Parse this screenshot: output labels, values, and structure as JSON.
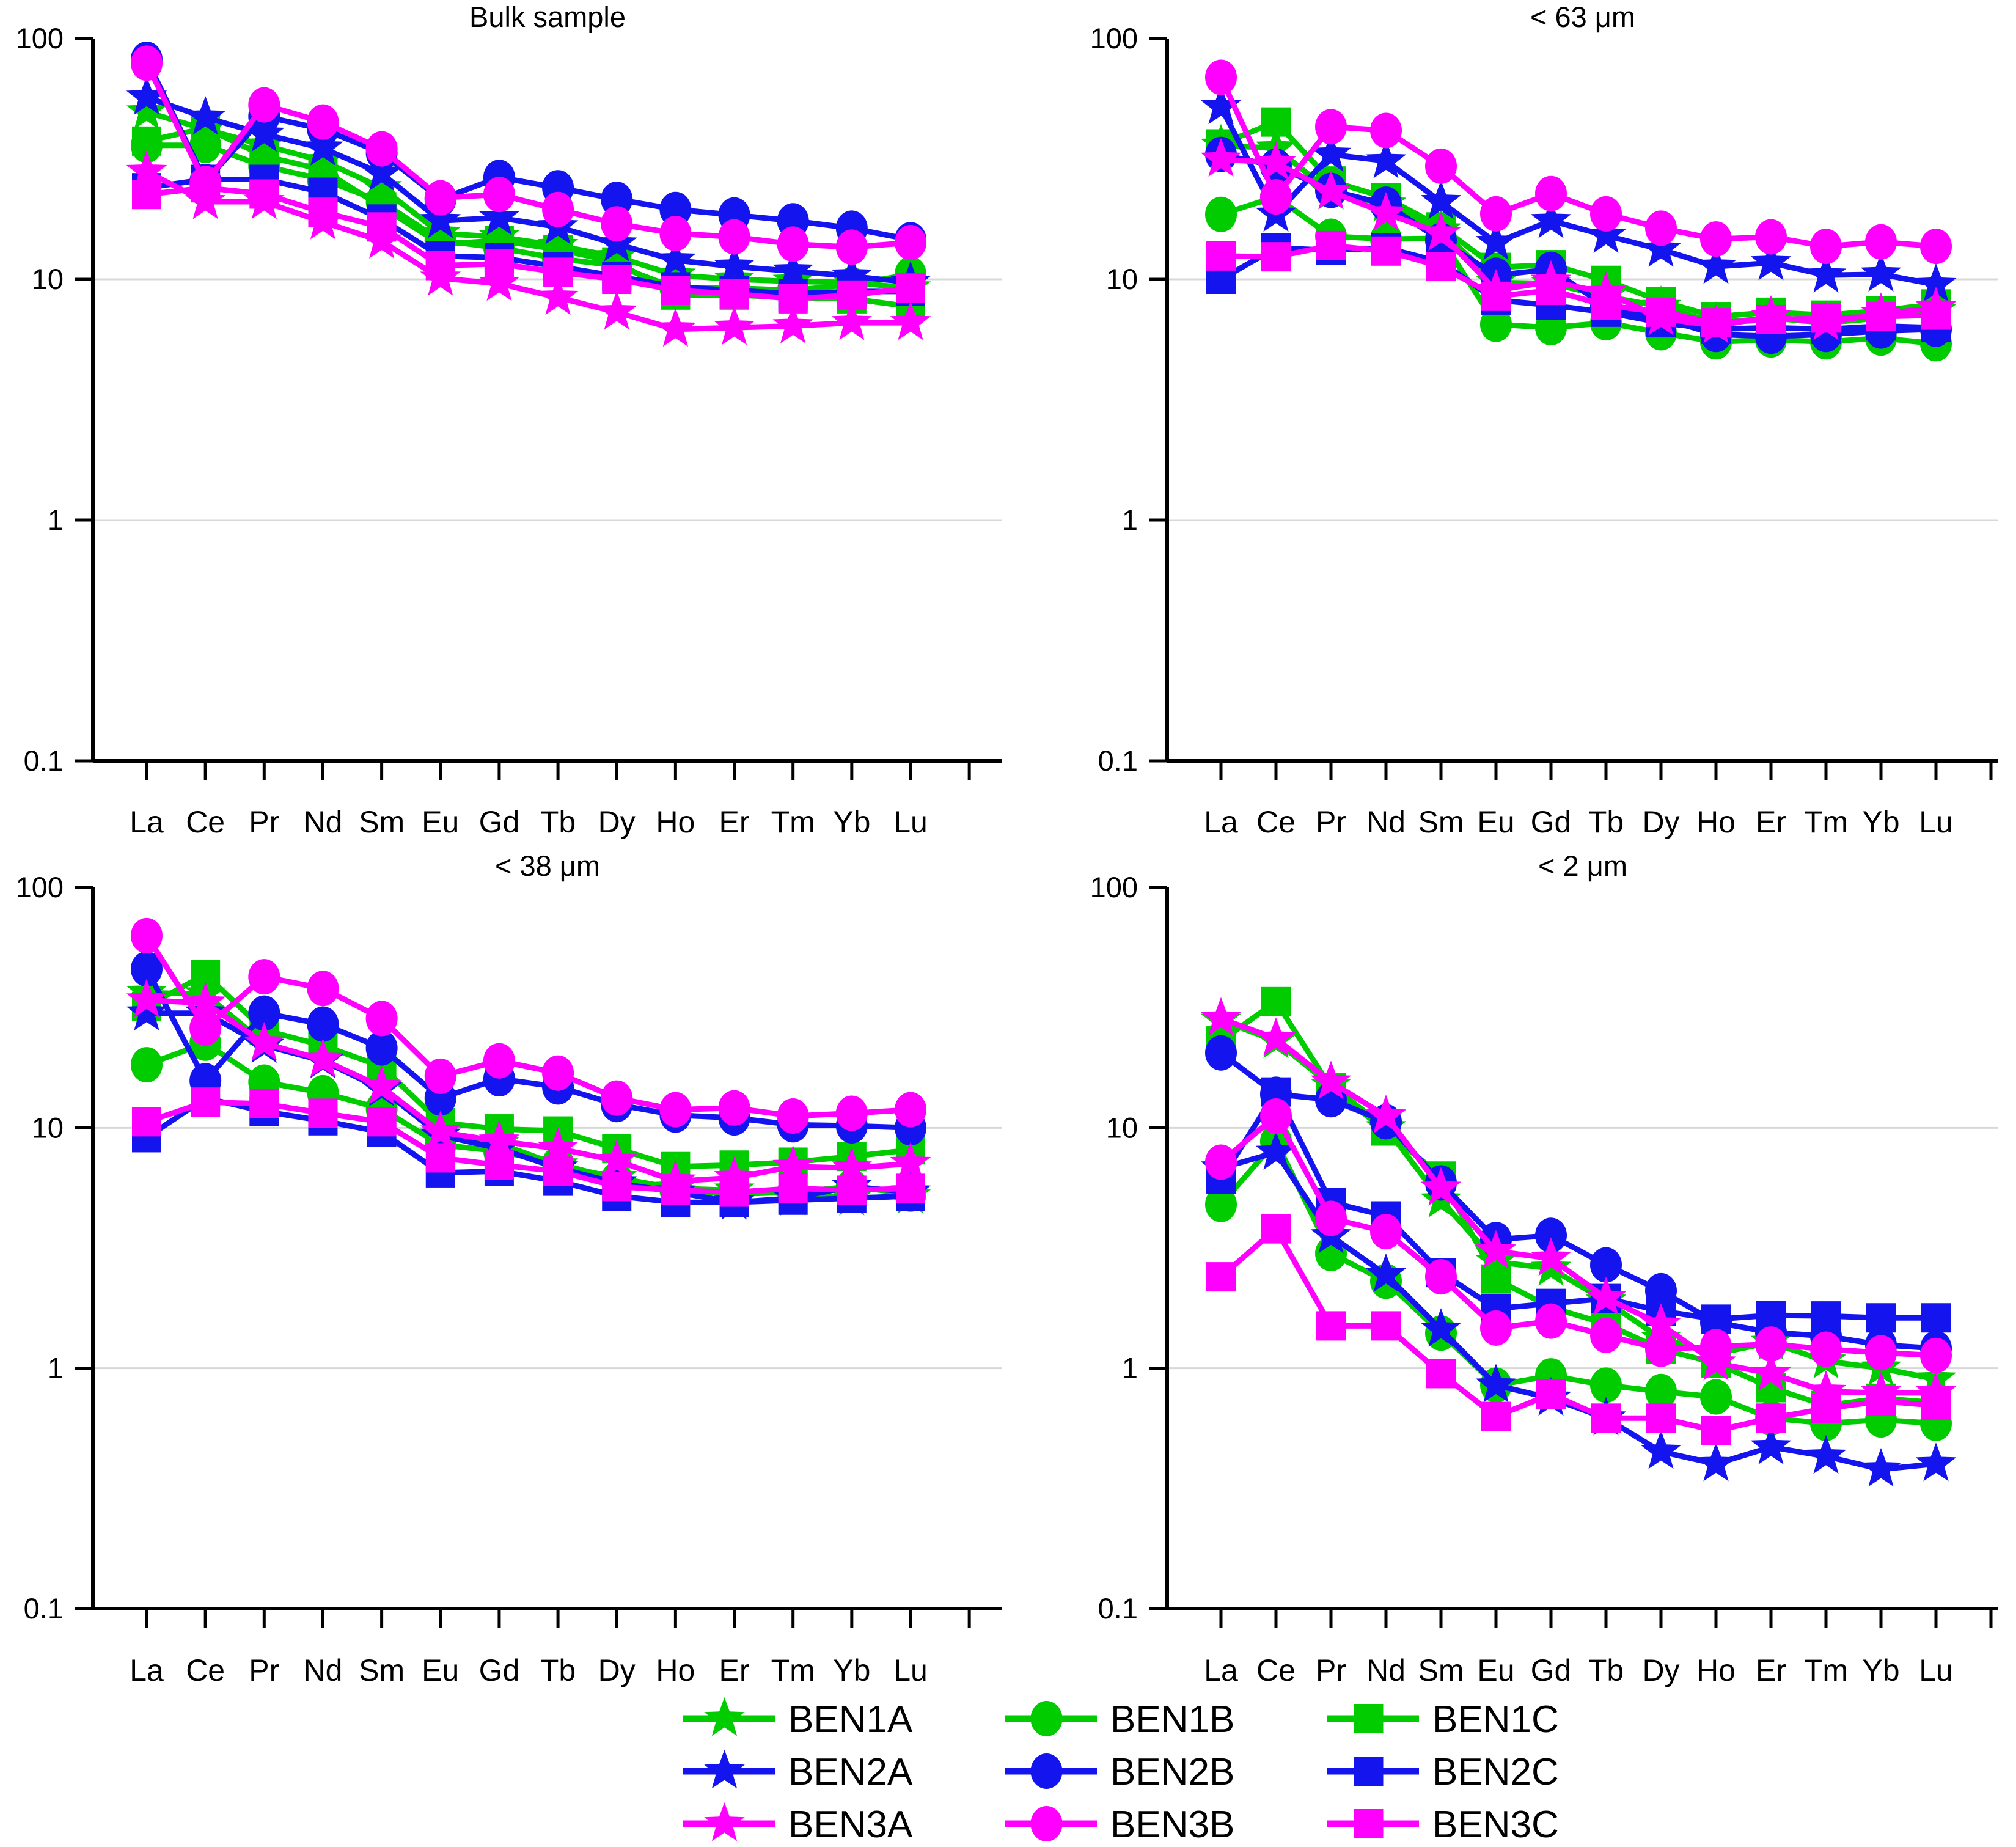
{
  "figure": {
    "background": "#ffffff",
    "kind": "ree-spider-diagrams",
    "legend_position": "bottom"
  },
  "colors": {
    "green": "#00CC00",
    "blue": "#1414EE",
    "magenta": "#FF00FF",
    "grid": "#D8D8D8",
    "axis": "#000000",
    "text": "#000000"
  },
  "categories": [
    "La",
    "Ce",
    "Pr",
    "Nd",
    "Sm",
    "Eu",
    "Gd",
    "Tb",
    "Dy",
    "Ho",
    "Er",
    "Tm",
    "Yb",
    "Lu"
  ],
  "y_axis": {
    "scale": "log",
    "ylim": [
      0.1,
      100
    ],
    "tick_values": [
      100,
      10,
      1,
      0.1
    ],
    "tick_labels": [
      "100",
      "10",
      "1",
      "0.1"
    ],
    "gridline_values": [
      10,
      1
    ]
  },
  "legend": {
    "items": [
      {
        "label": "BEN1A",
        "color": "green",
        "marker": "star",
        "row": 0,
        "col": 0
      },
      {
        "label": "BEN1B",
        "color": "green",
        "marker": "circle",
        "row": 0,
        "col": 1
      },
      {
        "label": "BEN1C",
        "color": "green",
        "marker": "square",
        "row": 0,
        "col": 2
      },
      {
        "label": "BEN2A",
        "color": "blue",
        "marker": "star",
        "row": 1,
        "col": 0
      },
      {
        "label": "BEN2B",
        "color": "blue",
        "marker": "circle",
        "row": 1,
        "col": 1
      },
      {
        "label": "BEN2C",
        "color": "blue",
        "marker": "square",
        "row": 1,
        "col": 2
      },
      {
        "label": "BEN3A",
        "color": "magenta",
        "marker": "star",
        "row": 2,
        "col": 0
      },
      {
        "label": "BEN3B",
        "color": "magenta",
        "marker": "circle",
        "row": 2,
        "col": 1
      },
      {
        "label": "BEN3C",
        "color": "magenta",
        "marker": "square",
        "row": 2,
        "col": 2
      }
    ]
  },
  "chart_data": [
    {
      "type": "line",
      "title": "Bulk sample",
      "y_scale": "log",
      "ylim": [
        0.1,
        100
      ],
      "series": [
        {
          "name": "BEN1A",
          "color": "green",
          "marker": "star",
          "values": [
            49.5,
            42,
            36,
            31,
            24,
            15.5,
            15,
            13.8,
            12.4,
            10.4,
            10.0,
            9.8,
            9.7,
            9.2
          ]
        },
        {
          "name": "BEN1B",
          "color": "green",
          "marker": "circle",
          "values": [
            36,
            36,
            29.5,
            26,
            21,
            14.5,
            13.5,
            12.2,
            11.4,
            9.2,
            9.2,
            9.0,
            9.5,
            10.5
          ]
        },
        {
          "name": "BEN1C",
          "color": "green",
          "marker": "square",
          "values": [
            37.5,
            42.5,
            32.5,
            28.5,
            20,
            14,
            14.5,
            13.3,
            11.8,
            8.6,
            8.6,
            8.4,
            8.3,
            7.7
          ]
        },
        {
          "name": "BEN2A",
          "color": "blue",
          "marker": "star",
          "values": [
            57,
            47,
            40,
            35,
            27.5,
            17.5,
            18,
            16.5,
            14,
            12,
            11.3,
            10.8,
            10.3,
            9.7
          ]
        },
        {
          "name": "BEN2B",
          "color": "blue",
          "marker": "circle",
          "values": [
            82,
            25.5,
            47.5,
            42,
            33.5,
            21.5,
            26.5,
            24,
            21.5,
            19.5,
            18.5,
            17.5,
            16.3,
            14.6
          ]
        },
        {
          "name": "BEN2C",
          "color": "blue",
          "marker": "square",
          "values": [
            24,
            26,
            26,
            23,
            17.8,
            12.5,
            12.3,
            11.3,
            10.3,
            9.3,
            9.0,
            8.7,
            8.9,
            8.9
          ]
        },
        {
          "name": "BEN3A",
          "color": "magenta",
          "marker": "star",
          "values": [
            28,
            21,
            21,
            17.3,
            14.4,
            10.1,
            9.6,
            8.4,
            7.3,
            6.2,
            6.3,
            6.4,
            6.6,
            6.6
          ]
        },
        {
          "name": "BEN3B",
          "color": "magenta",
          "marker": "circle",
          "values": [
            79,
            25,
            53,
            45,
            34.8,
            21.8,
            22.5,
            19.5,
            17,
            15.5,
            15,
            14,
            13.6,
            14.2
          ]
        },
        {
          "name": "BEN3C",
          "color": "magenta",
          "marker": "square",
          "values": [
            22.5,
            24,
            22.6,
            19,
            16.5,
            11.4,
            11.6,
            10.7,
            10.0,
            9.0,
            8.7,
            8.3,
            8.6,
            9.2
          ]
        }
      ]
    },
    {
      "type": "line",
      "title": "< 63 μm",
      "y_scale": "log",
      "ylim": [
        0.1,
        100
      ],
      "series": [
        {
          "name": "BEN1A",
          "color": "green",
          "marker": "star",
          "values": [
            36,
            35,
            23,
            20.5,
            16,
            9.7,
            9.6,
            8.5,
            7.7,
            6.6,
            6.9,
            6.6,
            6.9,
            7.4
          ]
        },
        {
          "name": "BEN1B",
          "color": "green",
          "marker": "circle",
          "values": [
            18.6,
            22,
            15.1,
            14.7,
            14.8,
            6.5,
            6.3,
            6.6,
            6.0,
            5.5,
            5.6,
            5.5,
            5.7,
            5.4
          ]
        },
        {
          "name": "BEN1C",
          "color": "green",
          "marker": "square",
          "values": [
            36.5,
            45,
            25.6,
            21.8,
            16.5,
            11.2,
            11.5,
            9.9,
            8.1,
            7.0,
            7.3,
            7.1,
            7.4,
            7.9
          ]
        },
        {
          "name": "BEN2A",
          "color": "blue",
          "marker": "star",
          "values": [
            52,
            18.6,
            33,
            31,
            21,
            14.2,
            17.5,
            15.2,
            13.3,
            11.3,
            11.7,
            10.4,
            10.5,
            9.5
          ]
        },
        {
          "name": "BEN2B",
          "color": "blue",
          "marker": "circle",
          "values": [
            33,
            29.5,
            23.4,
            20.5,
            14.5,
            10.4,
            11.0,
            7.7,
            6.9,
            5.9,
            5.8,
            5.9,
            6.1,
            6.2
          ]
        },
        {
          "name": "BEN2C",
          "color": "blue",
          "marker": "square",
          "values": [
            10,
            13.5,
            13.2,
            13.5,
            11.8,
            8.2,
            7.8,
            7.3,
            6.6,
            6.2,
            6.3,
            6.2,
            6.4,
            6.3
          ]
        },
        {
          "name": "BEN3A",
          "color": "magenta",
          "marker": "star",
          "values": [
            31.5,
            30.5,
            23.1,
            18.8,
            15.5,
            9.0,
            9.8,
            8.8,
            6.9,
            6.4,
            7.0,
            6.6,
            7.2,
            7.6
          ]
        },
        {
          "name": "BEN3B",
          "color": "magenta",
          "marker": "circle",
          "values": [
            69,
            22,
            43,
            41.5,
            29.5,
            18.7,
            22.7,
            18.7,
            16.3,
            14.7,
            15.0,
            13.7,
            14.3,
            13.7
          ]
        },
        {
          "name": "BEN3C",
          "color": "magenta",
          "marker": "square",
          "values": [
            12.5,
            12.4,
            13.8,
            13.1,
            11.3,
            8.5,
            9.0,
            7.8,
            7.3,
            6.6,
            6.8,
            6.9,
            7.0,
            7.1
          ]
        }
      ]
    },
    {
      "type": "line",
      "title": "< 38 μm",
      "y_scale": "log",
      "ylim": [
        0.1,
        100
      ],
      "series": [
        {
          "name": "BEN1A",
          "color": "green",
          "marker": "star",
          "values": [
            36.5,
            36,
            22.5,
            19,
            14.5,
            9.3,
            8.6,
            7.0,
            6.2,
            5.6,
            5.5,
            5.3,
            5.1,
            5.2
          ]
        },
        {
          "name": "BEN1B",
          "color": "green",
          "marker": "circle",
          "values": [
            18.3,
            22.5,
            15.5,
            14.0,
            12.0,
            8.5,
            8.0,
            7.1,
            6.1,
            5.5,
            5.3,
            5.4,
            5.7,
            5.3
          ]
        },
        {
          "name": "BEN1C",
          "color": "green",
          "marker": "square",
          "values": [
            32,
            43.5,
            25.5,
            22,
            18,
            10.5,
            9.9,
            9.7,
            8.2,
            6.9,
            7.0,
            7.2,
            7.6,
            8.1
          ]
        },
        {
          "name": "BEN2A",
          "color": "blue",
          "marker": "star",
          "values": [
            30,
            30,
            22,
            19,
            14.5,
            9.3,
            8.2,
            6.8,
            5.9,
            5.4,
            4.9,
            5.1,
            5.7,
            5.4
          ]
        },
        {
          "name": "BEN2B",
          "color": "blue",
          "marker": "circle",
          "values": [
            45.8,
            15.7,
            30,
            27,
            21.5,
            13.3,
            16,
            14.8,
            12.5,
            11.3,
            11.0,
            10.3,
            10.2,
            10.0
          ]
        },
        {
          "name": "BEN2C",
          "color": "blue",
          "marker": "square",
          "values": [
            9.1,
            13.3,
            11.7,
            10.7,
            9.6,
            6.5,
            6.6,
            6.0,
            5.2,
            4.9,
            4.9,
            5.0,
            5.1,
            5.2
          ]
        },
        {
          "name": "BEN3A",
          "color": "magenta",
          "marker": "star",
          "values": [
            34,
            33,
            22.5,
            19.2,
            14.8,
            9.6,
            8.8,
            8.2,
            7.3,
            6.0,
            6.2,
            6.9,
            6.8,
            7.1
          ]
        },
        {
          "name": "BEN3B",
          "color": "magenta",
          "marker": "circle",
          "values": [
            63,
            26,
            42.5,
            38,
            28.5,
            16.4,
            19,
            16.9,
            13.3,
            11.9,
            12.1,
            11.2,
            11.5,
            11.9
          ]
        },
        {
          "name": "BEN3C",
          "color": "magenta",
          "marker": "square",
          "values": [
            10.6,
            12.8,
            12.6,
            11.5,
            10.6,
            7.5,
            7.0,
            6.6,
            5.7,
            5.5,
            5.4,
            5.6,
            5.5,
            5.6
          ]
        }
      ]
    },
    {
      "type": "line",
      "title": "< 2 μm",
      "y_scale": "log",
      "ylim": [
        0.1,
        100
      ],
      "series": [
        {
          "name": "BEN1A",
          "color": "green",
          "marker": "star",
          "values": [
            28,
            23,
            15,
            10,
            5.0,
            2.77,
            2.6,
            1.9,
            1.33,
            1.15,
            1.28,
            1.07,
            1.0,
            0.9
          ]
        },
        {
          "name": "BEN1B",
          "color": "green",
          "marker": "circle",
          "values": [
            4.8,
            8.8,
            3.0,
            2.3,
            1.4,
            0.85,
            0.93,
            0.85,
            0.8,
            0.76,
            0.62,
            0.59,
            0.61,
            0.59
          ]
        },
        {
          "name": "BEN1C",
          "color": "green",
          "marker": "square",
          "values": [
            23,
            33.5,
            14.7,
            9.7,
            6.3,
            2.35,
            1.79,
            1.53,
            1.2,
            1.05,
            0.83,
            0.7,
            0.75,
            0.72
          ]
        },
        {
          "name": "BEN2A",
          "color": "blue",
          "marker": "star",
          "values": [
            6.8,
            7.9,
            3.55,
            2.45,
            1.45,
            0.85,
            0.75,
            0.62,
            0.45,
            0.4,
            0.47,
            0.43,
            0.38,
            0.4
          ]
        },
        {
          "name": "BEN2B",
          "color": "blue",
          "marker": "circle",
          "values": [
            20.5,
            13.8,
            13.1,
            10.6,
            5.9,
            3.43,
            3.57,
            2.69,
            2.1,
            1.55,
            1.41,
            1.36,
            1.25,
            1.21
          ]
        },
        {
          "name": "BEN2C",
          "color": "blue",
          "marker": "square",
          "values": [
            6.1,
            14.1,
            4.9,
            4.3,
            2.5,
            1.77,
            1.86,
            1.95,
            1.73,
            1.6,
            1.66,
            1.65,
            1.62,
            1.62
          ]
        },
        {
          "name": "BEN3A",
          "color": "magenta",
          "marker": "star",
          "values": [
            28.5,
            23.5,
            15.5,
            11.2,
            5.6,
            3.07,
            2.86,
            1.96,
            1.52,
            1.05,
            0.95,
            0.8,
            0.79,
            0.79
          ]
        },
        {
          "name": "BEN3B",
          "color": "magenta",
          "marker": "circle",
          "values": [
            7.2,
            11.2,
            4.2,
            3.7,
            2.4,
            1.47,
            1.57,
            1.37,
            1.2,
            1.23,
            1.26,
            1.2,
            1.16,
            1.13
          ]
        },
        {
          "name": "BEN3C",
          "color": "magenta",
          "marker": "square",
          "values": [
            2.4,
            3.8,
            1.5,
            1.5,
            0.95,
            0.63,
            0.78,
            0.62,
            0.62,
            0.55,
            0.62,
            0.68,
            0.73,
            0.7
          ]
        }
      ]
    }
  ]
}
